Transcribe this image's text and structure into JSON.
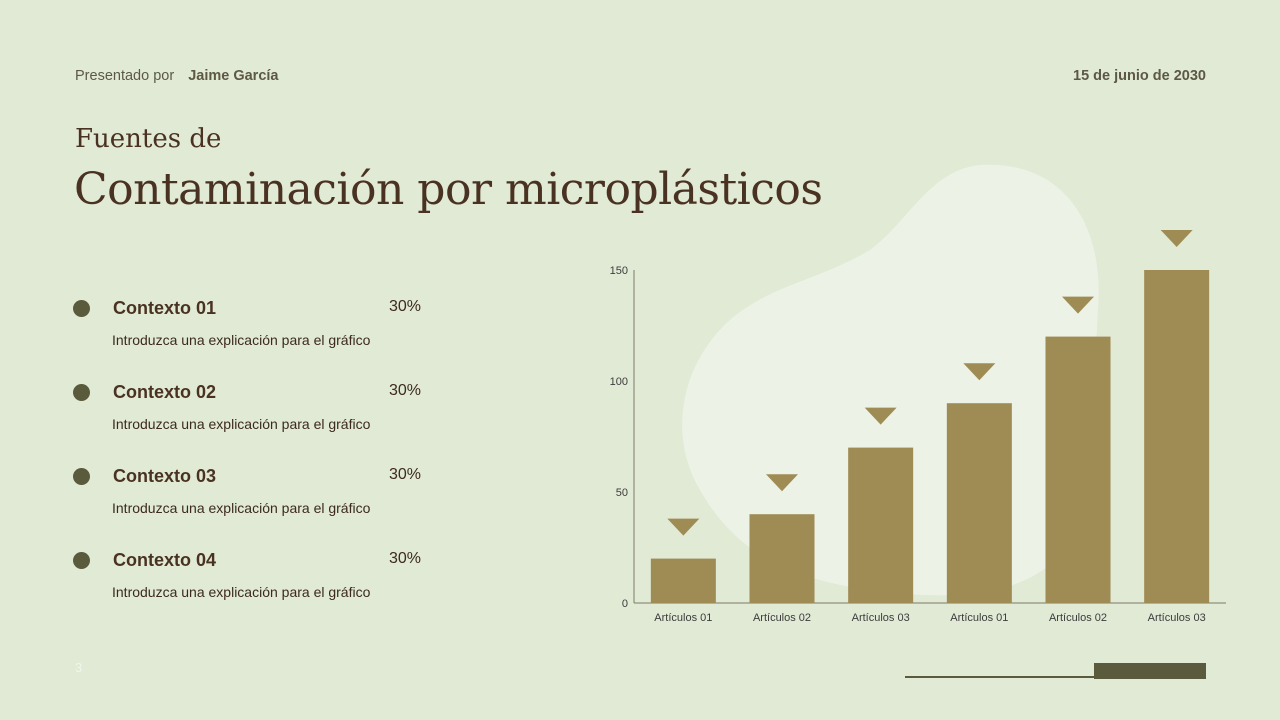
{
  "header": {
    "presented_by": "Presentado por",
    "presenter_name": "Jaime García",
    "date": "15 de junio de 2030"
  },
  "title": {
    "subtitle": "Fuentes de",
    "main": "Contaminación por microplásticos"
  },
  "contexts": [
    {
      "label": "Contexto 01",
      "percent": "30%",
      "desc": "Introduzca una explicación para el gráfico"
    },
    {
      "label": "Contexto 02",
      "percent": "30%",
      "desc": "Introduzca una explicación para el gráfico"
    },
    {
      "label": "Contexto 03",
      "percent": "30%",
      "desc": "Introduzca una explicación para el gráfico"
    },
    {
      "label": "Contexto 04",
      "percent": "30%",
      "desc": "Introduzca una explicación para el gráfico"
    }
  ],
  "footer": {
    "page_number": "3"
  },
  "colors": {
    "background": "#e1ead5",
    "bar": "#9f8b54",
    "accent": "#5a5a3c",
    "text": "#4a3222"
  },
  "chart_data": {
    "type": "bar",
    "categories": [
      "Artículos 01",
      "Artículos 02",
      "Artículos 03",
      "Artículos 01",
      "Artículos 02",
      "Artículos 03"
    ],
    "values": [
      20,
      40,
      70,
      90,
      120,
      150
    ],
    "ylim": [
      0,
      150
    ],
    "yticks": [
      0,
      50,
      100,
      150
    ],
    "grid": false,
    "legend": "none",
    "marker": "triangle-down above each bar"
  }
}
